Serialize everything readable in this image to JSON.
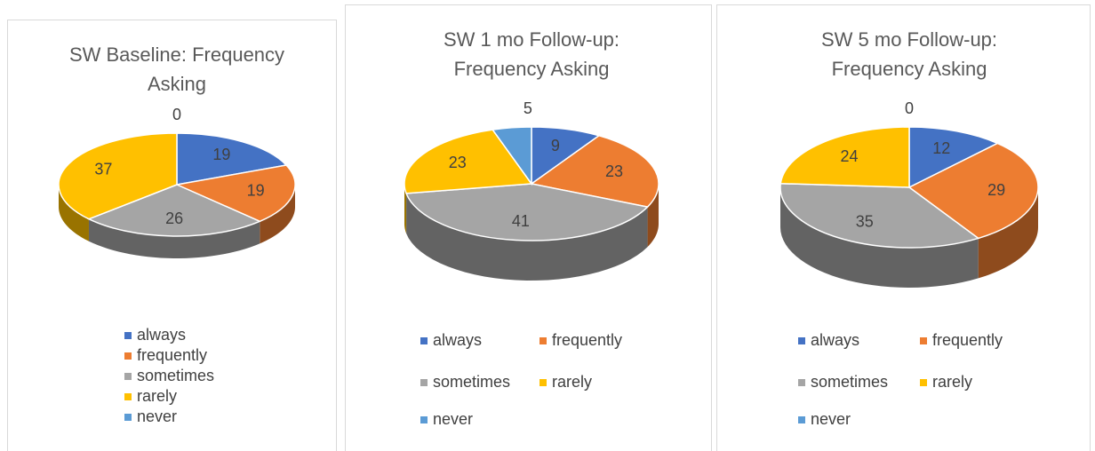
{
  "chart_data": [
    {
      "type": "pie",
      "title": "SW Baseline: Frequency Asking",
      "categories": [
        "always",
        "frequently",
        "sometimes",
        "rarely",
        "never"
      ],
      "values": [
        19,
        19,
        26,
        37,
        0
      ],
      "colors": [
        "#4472c4",
        "#ed7d31",
        "#a5a5a5",
        "#ffc000",
        "#5b9bd5"
      ]
    },
    {
      "type": "pie",
      "title": "SW 1 mo Follow-up: Frequency Asking",
      "categories": [
        "always",
        "frequently",
        "sometimes",
        "rarely",
        "never"
      ],
      "values": [
        9,
        23,
        41,
        23,
        5
      ],
      "colors": [
        "#4472c4",
        "#ed7d31",
        "#a5a5a5",
        "#ffc000",
        "#5b9bd5"
      ]
    },
    {
      "type": "pie",
      "title": "SW 5 mo Follow-up: Frequency Asking",
      "categories": [
        "always",
        "frequently",
        "sometimes",
        "rarely",
        "never"
      ],
      "values": [
        12,
        29,
        35,
        24,
        0
      ],
      "colors": [
        "#4472c4",
        "#ed7d31",
        "#a5a5a5",
        "#ffc000",
        "#5b9bd5"
      ]
    }
  ]
}
